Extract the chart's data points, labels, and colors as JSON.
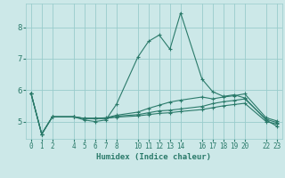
{
  "xlabel": "Humidex (Indice chaleur)",
  "ylabel": "",
  "background_color": "#cce8e8",
  "grid_color": "#99cccc",
  "line_color": "#2a7a6a",
  "x_ticks": [
    0,
    1,
    2,
    4,
    5,
    6,
    7,
    8,
    10,
    11,
    12,
    13,
    14,
    16,
    17,
    18,
    19,
    20,
    22,
    23
  ],
  "y_ticks": [
    5,
    6,
    7,
    8
  ],
  "ylim": [
    4.45,
    8.75
  ],
  "xlim": [
    -0.5,
    23.5
  ],
  "lines": [
    {
      "x": [
        0,
        1,
        2,
        4,
        5,
        6,
        7,
        8,
        10,
        11,
        12,
        13,
        14,
        16,
        17,
        18,
        19,
        20,
        22,
        23
      ],
      "y": [
        5.9,
        4.6,
        5.15,
        5.15,
        5.05,
        5.0,
        5.05,
        5.55,
        7.05,
        7.55,
        7.75,
        7.3,
        8.45,
        6.35,
        5.95,
        5.8,
        5.85,
        5.75,
        5.05,
        4.85
      ]
    },
    {
      "x": [
        0,
        1,
        2,
        4,
        5,
        6,
        7,
        8,
        10,
        11,
        12,
        13,
        14,
        16,
        17,
        18,
        19,
        20,
        22,
        23
      ],
      "y": [
        5.9,
        4.6,
        5.15,
        5.15,
        5.1,
        5.1,
        5.12,
        5.2,
        5.3,
        5.42,
        5.52,
        5.62,
        5.68,
        5.78,
        5.72,
        5.78,
        5.82,
        5.88,
        5.12,
        5.02
      ]
    },
    {
      "x": [
        0,
        1,
        2,
        4,
        5,
        6,
        7,
        8,
        10,
        11,
        12,
        13,
        14,
        16,
        17,
        18,
        19,
        20,
        22,
        23
      ],
      "y": [
        5.9,
        4.6,
        5.15,
        5.15,
        5.1,
        5.1,
        5.1,
        5.17,
        5.22,
        5.28,
        5.34,
        5.36,
        5.4,
        5.48,
        5.57,
        5.63,
        5.67,
        5.72,
        5.07,
        4.97
      ]
    },
    {
      "x": [
        0,
        1,
        2,
        4,
        5,
        6,
        7,
        8,
        10,
        11,
        12,
        13,
        14,
        16,
        17,
        18,
        19,
        20,
        22,
        23
      ],
      "y": [
        5.9,
        4.6,
        5.15,
        5.15,
        5.1,
        5.1,
        5.1,
        5.14,
        5.18,
        5.22,
        5.26,
        5.28,
        5.32,
        5.38,
        5.44,
        5.5,
        5.54,
        5.58,
        5.0,
        4.92
      ]
    }
  ]
}
